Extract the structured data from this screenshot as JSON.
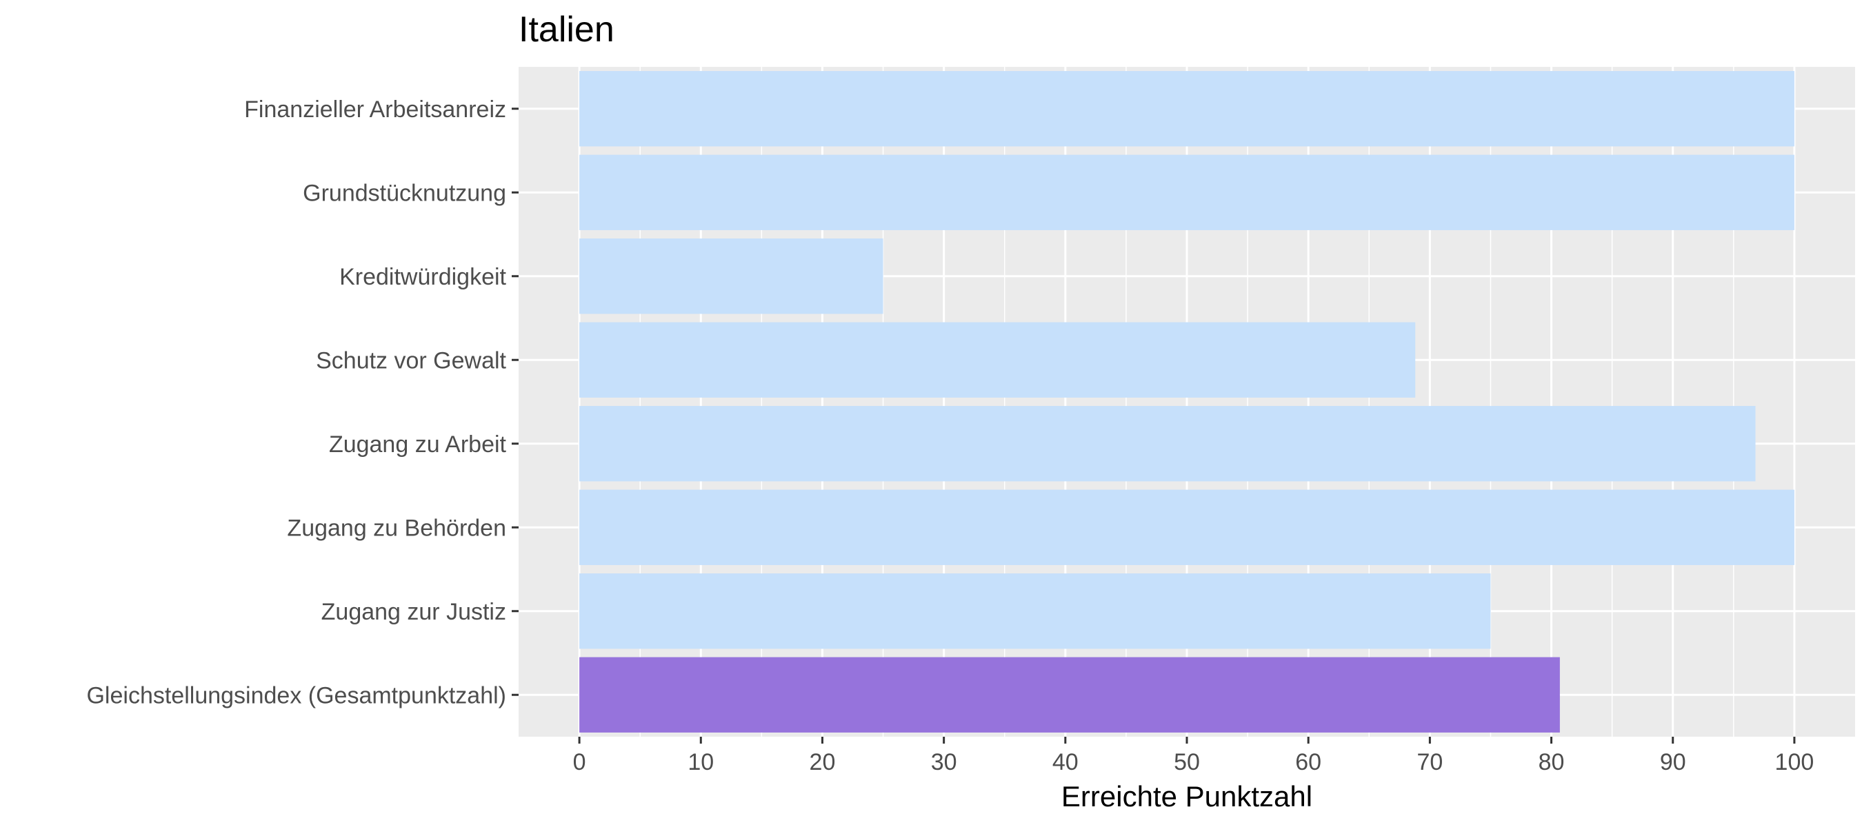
{
  "chart_data": {
    "type": "bar",
    "orientation": "horizontal",
    "title": "Italien",
    "xlabel": "Erreichte Punktzahl",
    "ylabel": "",
    "xlim": [
      -5,
      105
    ],
    "x_ticks": [
      0,
      10,
      20,
      30,
      40,
      50,
      60,
      70,
      80,
      90,
      100
    ],
    "grid": true,
    "categories": [
      "Finanzieller Arbeitsanreiz",
      "Grundstücknutzung",
      "Kreditwürdigkeit",
      "Schutz vor Gewalt",
      "Zugang zu Arbeit",
      "Zugang zu Behörden",
      "Zugang zur Justiz",
      "Gleichstellungsindex (Gesamtpunktzahl)"
    ],
    "values": [
      100,
      100,
      25,
      68.8,
      96.8,
      100,
      75,
      80.7
    ],
    "colors": {
      "panel": "#ebebeb",
      "grid": "#ffffff",
      "bar": "#c6e0fb",
      "highlight_bar": "#9673dc"
    },
    "highlight_index": 7
  }
}
